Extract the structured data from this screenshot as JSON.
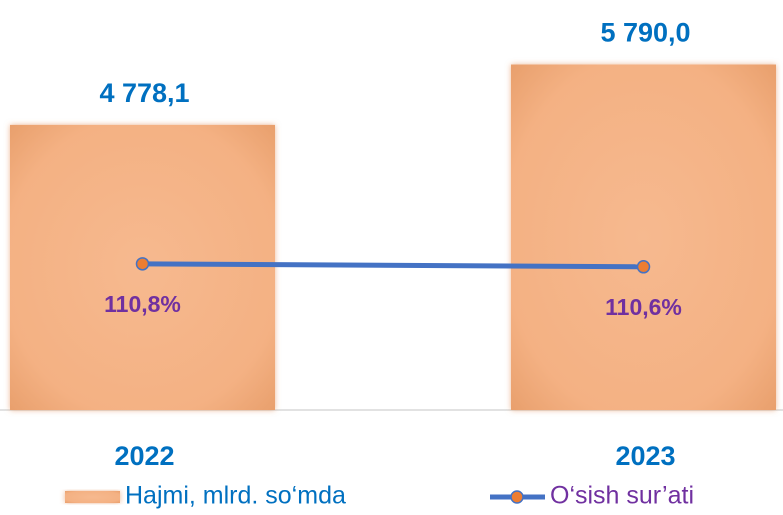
{
  "chart_data": {
    "type": "bar",
    "categories": [
      "2022",
      "2023"
    ],
    "series": [
      {
        "name": "Hajmi, mlrd. so‘mda",
        "type": "bar",
        "color": "#f4b183",
        "values": [
          4778.1,
          5790.0
        ],
        "value_labels": [
          "4 778,1",
          "5 790,0"
        ],
        "label_color": "#0070c0"
      },
      {
        "name": "O‘sish sur’ati",
        "type": "line",
        "axis": "y2",
        "color": "#4472c4",
        "marker_color": "#ed7d31",
        "values": [
          110.8,
          110.6
        ],
        "value_labels": [
          "110,8%",
          "110,6%"
        ],
        "label_color": "#7030a0"
      }
    ],
    "ylim": [
      0,
      6000
    ],
    "y2lim": [
      101,
      125
    ],
    "category_color": "#0070c0",
    "legend": "bottom"
  }
}
